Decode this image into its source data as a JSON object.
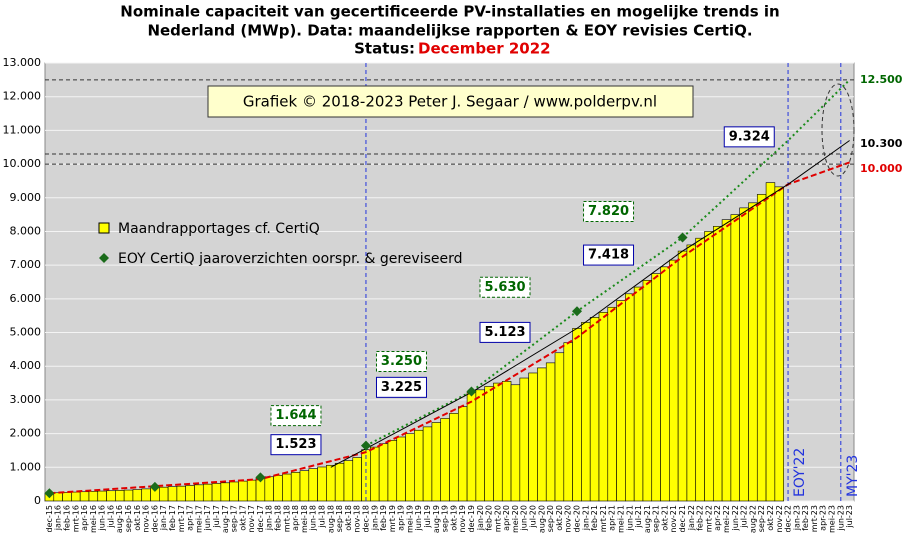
{
  "chart_data": {
    "type": "bar",
    "title_lines": [
      "Nominale capaciteit van gecertificeerde PV-installaties en mogelijke trends in",
      "Nederland (MWp). Data: maandelijkse rapporten & EOY revisies CertiQ."
    ],
    "status_label": "Status:",
    "status": "December 2022",
    "copyright": "Grafiek © 2018-2023 Peter J. Segaar / www.polderpv.nl",
    "categories": [
      "dec-15",
      "jan-16",
      "feb-16",
      "mrt-16",
      "apr-16",
      "mei-16",
      "jun-16",
      "jul-16",
      "aug-16",
      "sep-16",
      "okt-16",
      "nov-16",
      "dec-16",
      "jan-17",
      "feb-17",
      "mrt-17",
      "apr-17",
      "mei-17",
      "jun-17",
      "jul-17",
      "aug-17",
      "sep-17",
      "okt-17",
      "nov-17",
      "dec-17",
      "jan-18",
      "feb-18",
      "mrt-18",
      "apr-18",
      "mei-18",
      "jun-18",
      "jul-18",
      "aug-18",
      "sep-18",
      "okt-18",
      "nov-18",
      "dec-18",
      "jan-19",
      "feb-19",
      "mrt-19",
      "apr-19",
      "mei-19",
      "jun-19",
      "jul-19",
      "aug-19",
      "sep-19",
      "okt-19",
      "nov-19",
      "dec-19",
      "jan-20",
      "feb-20",
      "mrt-20",
      "apr-20",
      "mei-20",
      "jun-20",
      "jul-20",
      "aug-20",
      "sep-20",
      "okt-20",
      "nov-20",
      "dec-20",
      "jan-21",
      "feb-21",
      "mrt-21",
      "apr-21",
      "mei-21",
      "jun-21",
      "jul-21",
      "aug-21",
      "sep-21",
      "okt-21",
      "nov-21",
      "dec-21",
      "jan-22",
      "feb-22",
      "mrt-22",
      "apr-22",
      "mei-22",
      "jun-22",
      "jul-22",
      "aug-22",
      "sep-22",
      "okt-22",
      "nov-22",
      "dec-22",
      "jan-23",
      "feb-23",
      "mrt-23",
      "apr-23",
      "mei-23",
      "jun-23",
      "jul-23"
    ],
    "series": [
      {
        "name": "Maandrapportages cf. CertiQ",
        "color": "#ffff00",
        "values": [
          230,
          245,
          255,
          265,
          275,
          285,
          295,
          305,
          315,
          325,
          340,
          360,
          390,
          410,
          425,
          440,
          460,
          480,
          500,
          520,
          540,
          565,
          590,
          620,
          680,
          720,
          760,
          800,
          850,
          900,
          960,
          1010,
          1060,
          1120,
          1200,
          1290,
          1523,
          1600,
          1700,
          1800,
          1900,
          2000,
          2100,
          2200,
          2330,
          2450,
          2600,
          2800,
          3225,
          3300,
          3400,
          3500,
          3550,
          3450,
          3650,
          3800,
          3950,
          4100,
          4400,
          4700,
          5123,
          5300,
          5450,
          5600,
          5750,
          5950,
          6150,
          6350,
          6550,
          6750,
          6950,
          7150,
          7418,
          7600,
          7800,
          8000,
          8150,
          8350,
          8500,
          8700,
          8850,
          9100,
          9450,
          9324,
          null,
          null,
          null,
          null,
          null,
          null,
          null,
          null
        ]
      }
    ],
    "eoy": {
      "name": "EOY CertiQ jaaroverzichten oorspr. & gereviseerd",
      "color": "#1a6b1a",
      "x": [
        "dec-15",
        "dec-16",
        "dec-17",
        "dec-18",
        "dec-19",
        "dec-20",
        "dec-21"
      ],
      "values": [
        230,
        420,
        700,
        1644,
        3250,
        5630,
        7820
      ]
    },
    "trends": [
      {
        "color": "#e00000",
        "style": "dashed",
        "x": [
          "dec-15",
          "dec-17",
          "dec-18",
          "dec-19",
          "dec-20",
          "dec-21",
          "dec-22",
          "jul-23"
        ],
        "values": [
          230,
          650,
          1450,
          2950,
          4850,
          7250,
          9400,
          10050
        ]
      },
      {
        "color": "#1a8a1a",
        "style": "dotted",
        "x": [
          "dec-18",
          "dec-19",
          "dec-20",
          "dec-21",
          "dec-22",
          "jul-23"
        ],
        "values": [
          1644,
          3250,
          5630,
          7820,
          10700,
          12500
        ]
      },
      {
        "color": "#000000",
        "style": "solid",
        "x": [
          "aug-18",
          "dec-19",
          "dec-20",
          "dec-21",
          "dec-22",
          "jul-23"
        ],
        "values": [
          1000,
          3225,
          5123,
          7418,
          9400,
          10700
        ]
      }
    ],
    "reference_lines": [
      {
        "value": 12500,
        "label": "12.500",
        "color": "#006600"
      },
      {
        "value": 10300,
        "label": "10.300",
        "color": "#000000"
      },
      {
        "value": 10000,
        "label": "10.000",
        "color": "#e00000"
      }
    ],
    "vlines": [
      {
        "x": "dec-18"
      },
      {
        "x": "dec-22",
        "label": "EOY'22"
      },
      {
        "x": "jun-23",
        "label": "MY'23"
      }
    ],
    "annotations": [
      {
        "value": 1644,
        "label": "1.644",
        "color": "#006600",
        "x": "dec-18"
      },
      {
        "value": 1523,
        "label": "1.523",
        "color": "#0000aa",
        "x": "dec-18"
      },
      {
        "value": 3250,
        "label": "3.250",
        "color": "#006600",
        "x": "dec-19"
      },
      {
        "value": 3225,
        "label": "3.225",
        "color": "#0000aa",
        "x": "dec-19"
      },
      {
        "value": 5630,
        "label": "5.630",
        "color": "#006600",
        "x": "dec-20"
      },
      {
        "value": 5123,
        "label": "5.123",
        "color": "#0000aa",
        "x": "dec-20"
      },
      {
        "value": 7820,
        "label": "7.820",
        "color": "#006600",
        "x": "dec-21"
      },
      {
        "value": 7418,
        "label": "7.418",
        "color": "#0000aa",
        "x": "dec-21"
      },
      {
        "value": 9324,
        "label": "9.324",
        "color": "#0000aa",
        "x": "nov-22"
      }
    ],
    "ylim": [
      0,
      13000
    ],
    "yticks": [
      0,
      {
        "value": 1000,
        "label": "1.000"
      },
      {
        "value": 2000,
        "label": "2.000"
      },
      {
        "value": 3000,
        "label": "3.000"
      },
      {
        "value": 4000,
        "label": "4.000"
      },
      {
        "value": 5000,
        "label": "5.000"
      },
      {
        "value": 6000,
        "label": "6.000"
      },
      {
        "value": 7000,
        "label": "7.000"
      },
      {
        "value": 8000,
        "label": "8.000"
      },
      {
        "value": 9000,
        "label": "9.000"
      },
      {
        "value": 10000,
        "label": "10.000"
      },
      {
        "value": 11000,
        "label": "11.000"
      },
      {
        "value": 12000,
        "label": "12.000"
      },
      {
        "value": 13000,
        "label": "13.000"
      }
    ],
    "grid": true
  }
}
